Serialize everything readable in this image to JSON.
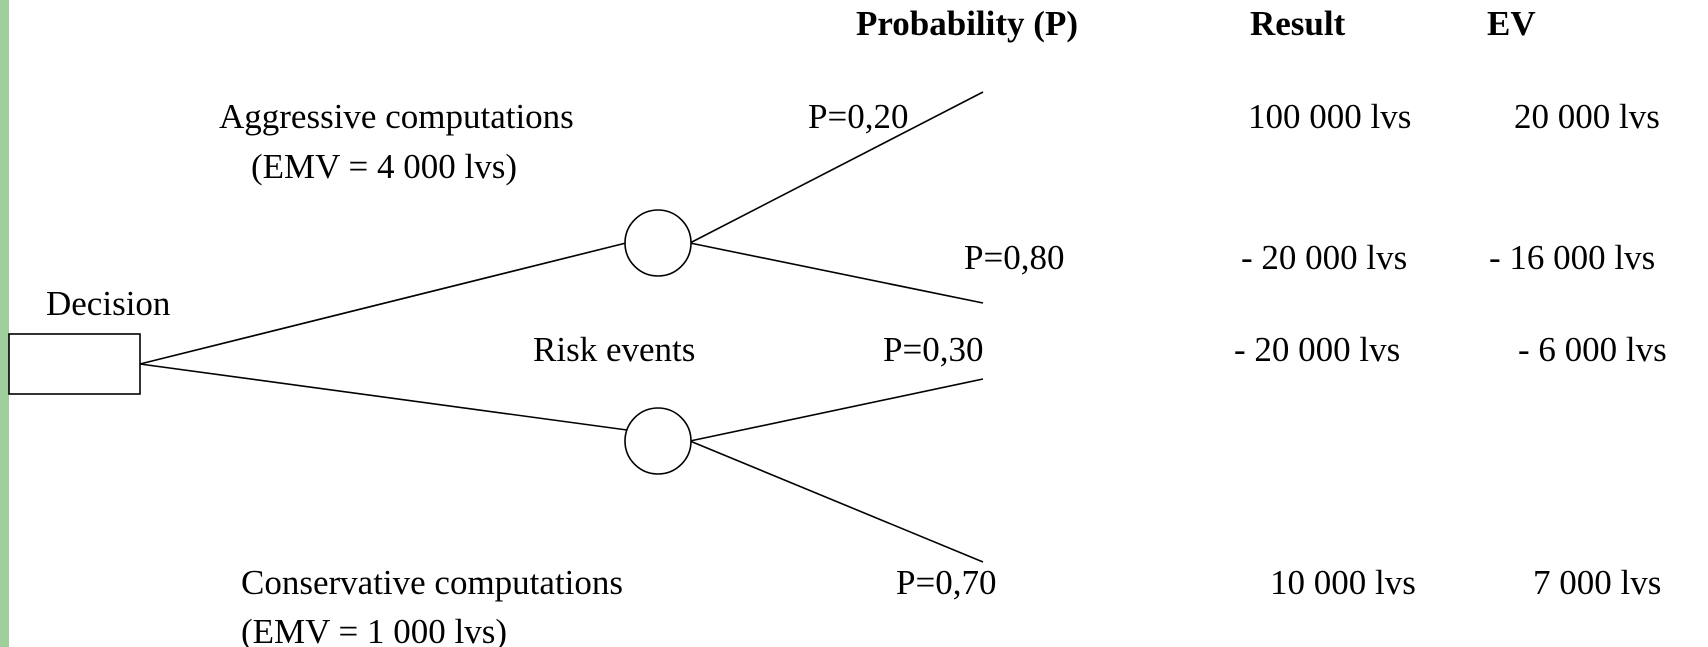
{
  "header": {
    "probability": "Probability (P)",
    "result": "Result",
    "ev": "EV"
  },
  "decision": {
    "label": "Decision"
  },
  "chance": {
    "label": "Risk events"
  },
  "options": [
    {
      "name": "Aggressive computations",
      "emv": "(EMV = 4 000 lvs)",
      "outcomes": [
        {
          "probability": "P=0,20",
          "result": "100 000 lvs",
          "ev": "20 000 lvs"
        },
        {
          "probability": "P=0,80",
          "result": "- 20 000 lvs",
          "ev": "- 16 000 lvs"
        }
      ]
    },
    {
      "name": "Conservative computations",
      "emv": "(EMV = 1 000 lvs)",
      "outcomes": [
        {
          "probability": "P=0,30",
          "result": "- 20 000 lvs",
          "ev": "- 6 000 lvs"
        },
        {
          "probability": "P=0,70",
          "result": "10 000 lvs",
          "ev": "7 000 lvs"
        }
      ]
    }
  ]
}
